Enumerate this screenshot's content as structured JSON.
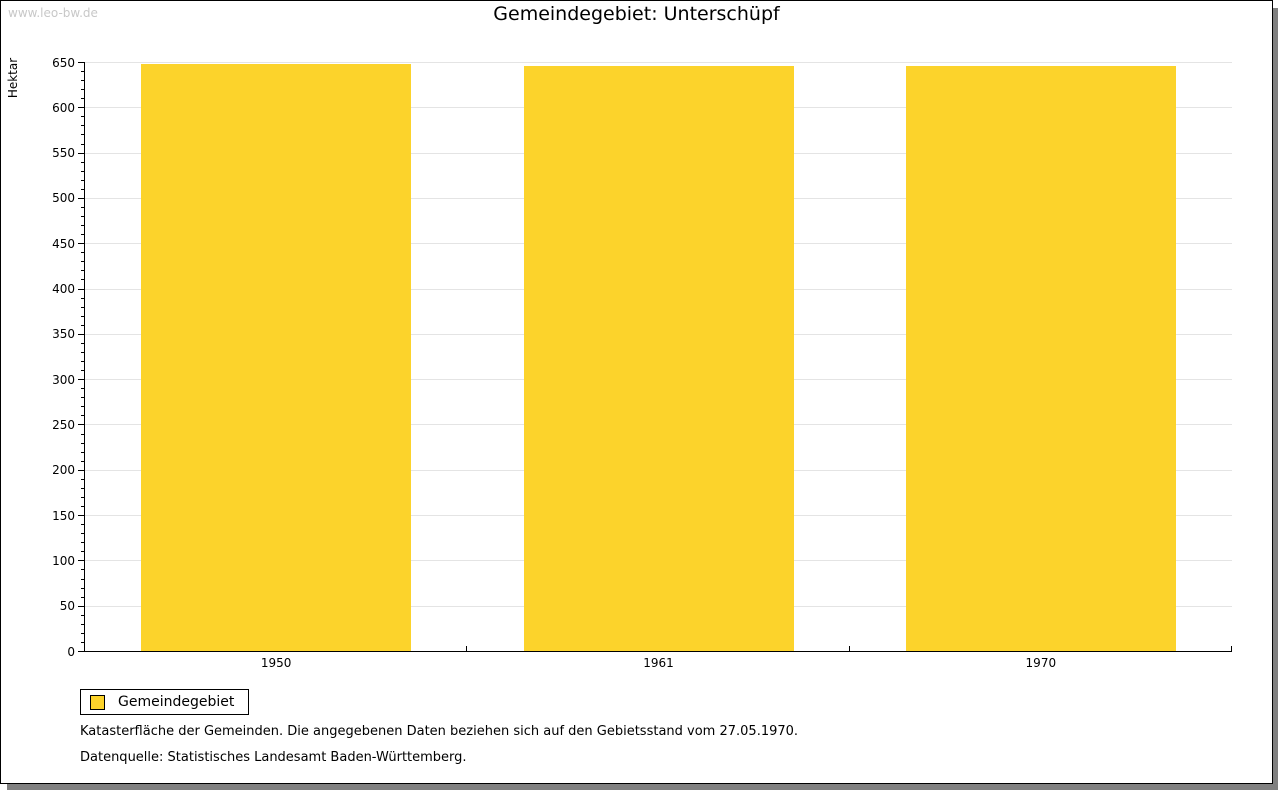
{
  "watermark": "www.leo-bw.de",
  "chart_data": {
    "type": "bar",
    "title": "Gemeindegebiet: Unterschüpf",
    "ylabel": "Hektar",
    "xlabel": "",
    "categories": [
      "1950",
      "1961",
      "1970"
    ],
    "series": [
      {
        "name": "Gemeindegebiet",
        "values": [
          648,
          646,
          646
        ]
      }
    ],
    "ylim": [
      0,
      650
    ],
    "y_major_step": 50,
    "y_minor_step": 10,
    "grid": "horizontal-major",
    "legend_position": "bottom-left",
    "bar_color": "#FCD32B",
    "grid_color": "#E4E4E4",
    "axis_color": "#000000"
  },
  "footnotes": [
    "Katasterfläche der Gemeinden. Die angegebenen Daten beziehen sich auf den Gebietsstand vom 27.05.1970.",
    "Datenquelle: Statistisches Landesamt Baden-Württemberg."
  ]
}
